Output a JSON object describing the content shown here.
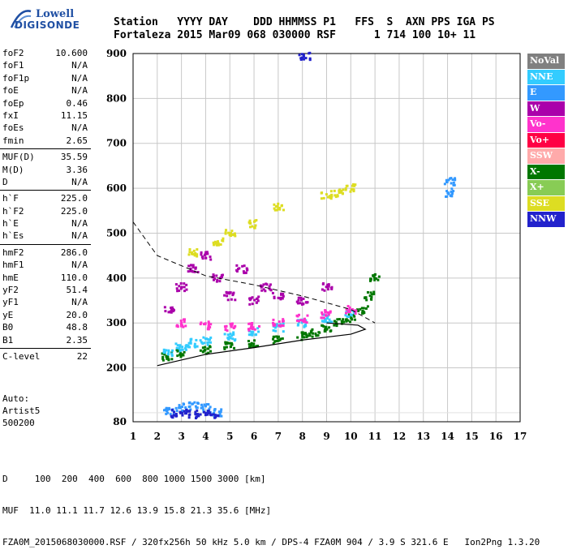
{
  "logo": {
    "line1": "Lowell",
    "line2": "DIGISONDE"
  },
  "header": {
    "labels": [
      "Station",
      "YYYY DAY",
      "DDD",
      "HHMMSS",
      "P1",
      "FFS",
      "S",
      "AXN",
      "PPS",
      "IGA",
      "PS"
    ],
    "station": "Fortaleza",
    "date": "2015 Mar09",
    "ddd": "068",
    "time": "030000",
    "p1": "RSF",
    "s": "1",
    "axn": "714",
    "pps": "100",
    "iga": "10+",
    "ps": "11"
  },
  "params": {
    "group1": [
      {
        "name": "foF2",
        "value": "10.600"
      },
      {
        "name": "foF1",
        "value": "N/A"
      },
      {
        "name": "foF1p",
        "value": "N/A"
      },
      {
        "name": "foE",
        "value": "N/A"
      },
      {
        "name": "foEp",
        "value": "0.46"
      },
      {
        "name": "fxI",
        "value": "11.15"
      },
      {
        "name": "foEs",
        "value": "N/A"
      },
      {
        "name": "fmin",
        "value": "2.65"
      }
    ],
    "group2": [
      {
        "name": "MUF(D)",
        "value": "35.59"
      },
      {
        "name": "M(D)",
        "value": "3.36"
      },
      {
        "name": "D",
        "value": "N/A"
      }
    ],
    "group3": [
      {
        "name": "h`F",
        "value": "225.0"
      },
      {
        "name": "h`F2",
        "value": "225.0"
      },
      {
        "name": "h`E",
        "value": "N/A"
      },
      {
        "name": "h`Es",
        "value": "N/A"
      }
    ],
    "group4": [
      {
        "name": "hmF2",
        "value": "286.0"
      },
      {
        "name": "hmF1",
        "value": "N/A"
      },
      {
        "name": "hmE",
        "value": "110.0"
      },
      {
        "name": "yF2",
        "value": "51.4"
      },
      {
        "name": "yF1",
        "value": "N/A"
      },
      {
        "name": "yE",
        "value": "20.0"
      },
      {
        "name": "B0",
        "value": "48.8"
      },
      {
        "name": "B1",
        "value": "2.35"
      }
    ],
    "group5": [
      {
        "name": "C-level",
        "value": "22"
      }
    ]
  },
  "auto": {
    "line1": "Auto:",
    "line2": "Artist5",
    "line3": "500200"
  },
  "legend": [
    {
      "label": "NoVal",
      "color": "#808080"
    },
    {
      "label": "NNE",
      "color": "#33ccff"
    },
    {
      "label": "E",
      "color": "#3399ff"
    },
    {
      "label": "W",
      "color": "#aa00aa"
    },
    {
      "label": "Vo-",
      "color": "#ff33cc"
    },
    {
      "label": "Vo+",
      "color": "#ff0044"
    },
    {
      "label": "SSW",
      "color": "#ffaaaa"
    },
    {
      "label": "X-",
      "color": "#007700"
    },
    {
      "label": "X+",
      "color": "#88cc55"
    },
    {
      "label": "SSE",
      "color": "#dddd22"
    },
    {
      "label": "NNW",
      "color": "#2222cc"
    }
  ],
  "footer": {
    "d_row": "D     100  200  400  600  800 1000 1500 3000 [km]",
    "muf_row": "MUF  11.0 11.1 11.7 12.6 13.9 15.8 21.3 35.6 [MHz]",
    "file_row": "FZA0M_2015068030000.RSF / 320fx256h 50 kHz 5.0 km / DPS-4 FZA0M 904 / 3.9 S 321.6 E   Ion2Png 1.3.20"
  },
  "chart_data": {
    "type": "scatter",
    "xlim": [
      1,
      17
    ],
    "ylim": [
      80,
      900
    ],
    "x_ticks": [
      1,
      2,
      3,
      4,
      5,
      6,
      7,
      8,
      9,
      10,
      11,
      12,
      13,
      14,
      15,
      16,
      17
    ],
    "y_ticks": [
      80,
      200,
      300,
      400,
      500,
      600,
      700,
      800,
      900
    ],
    "grid": true,
    "legend_position": "right",
    "series": [
      {
        "name": "X-",
        "color": "#007700",
        "points": [
          [
            2.4,
            225
          ],
          [
            3,
            232
          ],
          [
            4,
            240
          ],
          [
            5,
            248
          ],
          [
            6,
            255
          ],
          [
            7,
            262
          ],
          [
            8,
            270
          ],
          [
            8.5,
            278
          ],
          [
            9,
            290
          ],
          [
            9.5,
            300
          ],
          [
            10,
            310
          ],
          [
            10.5,
            330
          ],
          [
            10.8,
            360
          ],
          [
            11,
            400
          ]
        ]
      },
      {
        "name": "NNE",
        "color": "#33ccff",
        "points": [
          [
            2.5,
            235
          ],
          [
            3,
            245
          ],
          [
            3.5,
            255
          ],
          [
            4,
            260
          ],
          [
            5,
            270
          ],
          [
            6,
            280
          ],
          [
            7,
            290
          ],
          [
            8,
            300
          ],
          [
            9,
            310
          ],
          [
            10,
            320
          ]
        ]
      },
      {
        "name": "W",
        "color": "#aa00aa",
        "points": [
          [
            2.5,
            330
          ],
          [
            3,
            380
          ],
          [
            3.5,
            420
          ],
          [
            4,
            450
          ],
          [
            4.5,
            400
          ],
          [
            5,
            360
          ],
          [
            5.5,
            420
          ],
          [
            6,
            350
          ],
          [
            6.5,
            380
          ],
          [
            7,
            360
          ],
          [
            8,
            350
          ],
          [
            9,
            380
          ]
        ]
      },
      {
        "name": "Vo-",
        "color": "#ff33cc",
        "points": [
          [
            3,
            300
          ],
          [
            4,
            295
          ],
          [
            5,
            290
          ],
          [
            6,
            292
          ],
          [
            7,
            300
          ],
          [
            8,
            310
          ],
          [
            9,
            320
          ],
          [
            10,
            330
          ]
        ]
      },
      {
        "name": "SSE",
        "color": "#dddd22",
        "points": [
          [
            3.5,
            455
          ],
          [
            4.5,
            480
          ],
          [
            5,
            500
          ],
          [
            6,
            520
          ],
          [
            7,
            560
          ],
          [
            9,
            585
          ],
          [
            9.5,
            590
          ],
          [
            10,
            600
          ]
        ]
      },
      {
        "name": "E",
        "color": "#3399ff",
        "points": [
          [
            2.5,
            105
          ],
          [
            3,
            112
          ],
          [
            3.5,
            115
          ],
          [
            4,
            110
          ],
          [
            4.5,
            100
          ],
          [
            14.1,
            615
          ],
          [
            14.1,
            590
          ]
        ]
      },
      {
        "name": "NNW",
        "color": "#2222cc",
        "points": [
          [
            2.8,
            98
          ],
          [
            3.2,
            98
          ],
          [
            3.8,
            97
          ],
          [
            4.3,
            97
          ],
          [
            8.1,
            895
          ]
        ]
      }
    ],
    "profile_line": [
      [
        2.0,
        205
      ],
      [
        4,
        230
      ],
      [
        6,
        245
      ],
      [
        8,
        262
      ],
      [
        10,
        275
      ],
      [
        10.6,
        286
      ],
      [
        10.3,
        295
      ],
      [
        9,
        300
      ]
    ],
    "dashed_line": [
      [
        1,
        525
      ],
      [
        2,
        450
      ],
      [
        4,
        405
      ],
      [
        6,
        385
      ],
      [
        8,
        360
      ],
      [
        10,
        330
      ],
      [
        11,
        300
      ]
    ]
  }
}
